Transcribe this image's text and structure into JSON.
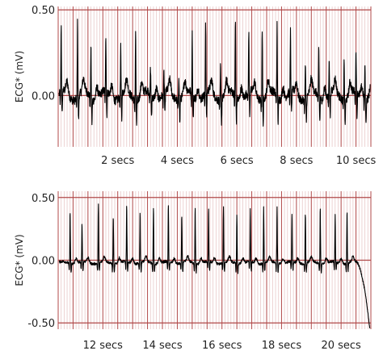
{
  "chart_data": [
    {
      "type": "line",
      "ylabel": "ECG* (mV)",
      "xlim": [
        0,
        10.5
      ],
      "ylim": [
        -0.3,
        0.52
      ],
      "x_ticks": [
        2,
        4,
        6,
        8,
        10
      ],
      "x_tick_labels": [
        "2 secs",
        "4 secs",
        "6 secs",
        "8 secs",
        "10 secs"
      ],
      "y_ticks": [
        0.0,
        0.5
      ],
      "y_tick_labels": [
        "0.00",
        "0.50"
      ],
      "y_major_lines": [
        0.0,
        0.5
      ],
      "grid": true,
      "series": [
        {
          "color": "#000000",
          "beat_times": [
            0.1,
            0.65,
            1.1,
            1.6,
            2.1,
            2.6,
            3.1,
            3.55,
            4.05,
            4.5,
            4.95,
            5.45,
            5.95,
            6.4,
            6.85,
            7.35,
            7.8,
            8.3,
            8.75,
            9.1,
            9.6,
            10.0,
            10.3
          ],
          "beat_peaks": [
            0.38,
            0.45,
            0.3,
            0.33,
            0.28,
            0.4,
            0.15,
            0.12,
            0.15,
            0.35,
            0.4,
            0.2,
            0.45,
            0.35,
            0.42,
            0.42,
            0.35,
            0.2,
            0.3,
            0.2,
            0.25,
            0.25,
            0.22
          ]
        }
      ]
    },
    {
      "type": "line",
      "ylabel": "ECG* (mV)",
      "xlim": [
        10.5,
        21.0
      ],
      "ylim": [
        -0.55,
        0.55
      ],
      "x_ticks": [
        12,
        14,
        16,
        18,
        20
      ],
      "x_tick_labels": [
        "12 secs",
        "14 secs",
        "16 secs",
        "18 secs",
        "20 secs"
      ],
      "y_ticks": [
        0.5,
        0.0,
        -0.5
      ],
      "y_tick_labels": [
        "0.50",
        "0.00",
        "-0.50"
      ],
      "y_major_lines": [
        0.5,
        0.0,
        -0.5
      ],
      "grid": true,
      "series": [
        {
          "color": "#000000",
          "beat_times": [
            10.9,
            11.3,
            11.85,
            12.35,
            12.8,
            13.25,
            13.7,
            14.2,
            14.65,
            15.1,
            15.55,
            16.05,
            16.5,
            16.95,
            17.4,
            17.85,
            18.35,
            18.8,
            19.3,
            19.8,
            20.2
          ],
          "beat_peaks": [
            0.42,
            0.3,
            0.48,
            0.38,
            0.45,
            0.4,
            0.45,
            0.45,
            0.38,
            0.45,
            0.42,
            0.45,
            0.38,
            0.42,
            0.45,
            0.45,
            0.38,
            0.4,
            0.45,
            0.38,
            0.42
          ]
        }
      ]
    }
  ]
}
